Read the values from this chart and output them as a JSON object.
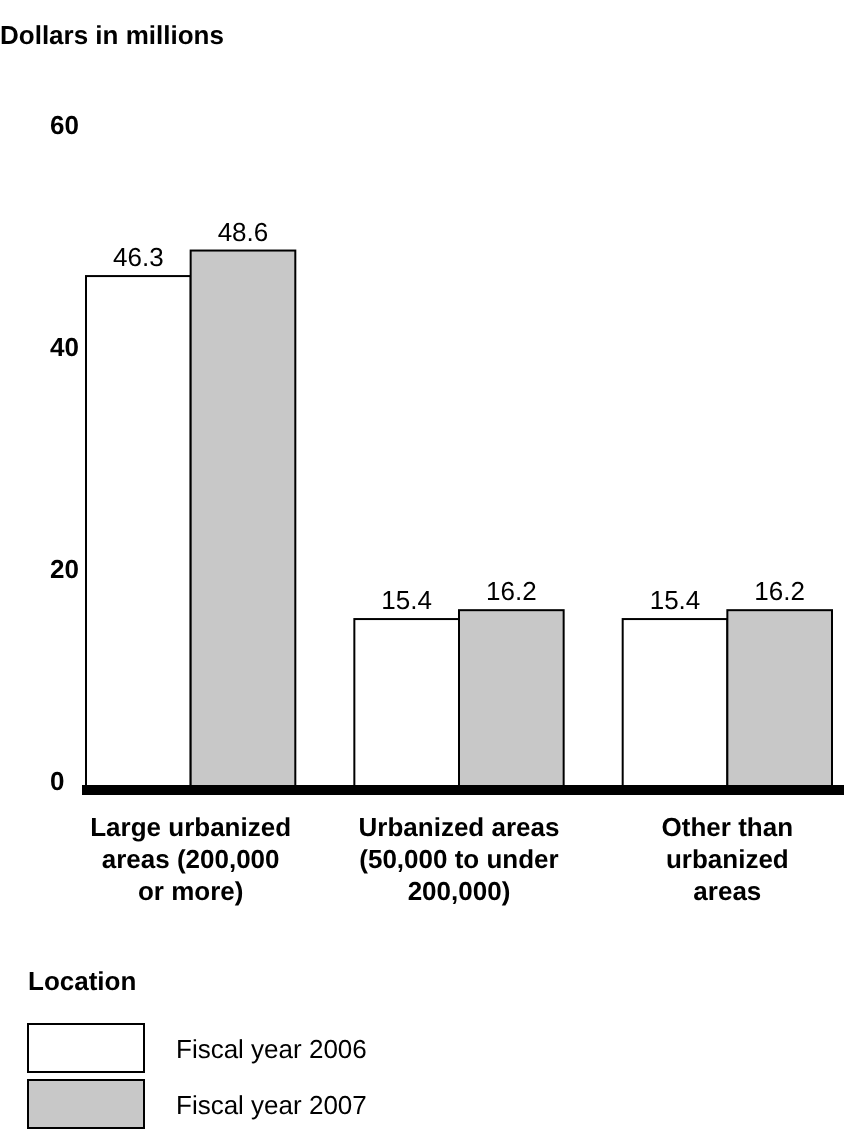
{
  "chart_data": {
    "type": "bar",
    "ylabel": "Dollars in millions",
    "xlabel": "Location",
    "categories": [
      "Large urbanized areas (200,000 or more)",
      "Urbanized areas (50,000 to under 200,000)",
      "Other than urbanized areas"
    ],
    "series": [
      {
        "name": "Fiscal year 2006",
        "color": "#ffffff",
        "values": [
          46.3,
          15.4,
          15.4
        ]
      },
      {
        "name": "Fiscal year 2007",
        "color": "#c8c8c8",
        "values": [
          48.6,
          16.2,
          16.2
        ]
      }
    ],
    "ylim": [
      0,
      60
    ],
    "yticks": [
      0,
      20,
      40,
      60
    ],
    "data_labels": true,
    "grid": false,
    "legend": "bottom"
  }
}
